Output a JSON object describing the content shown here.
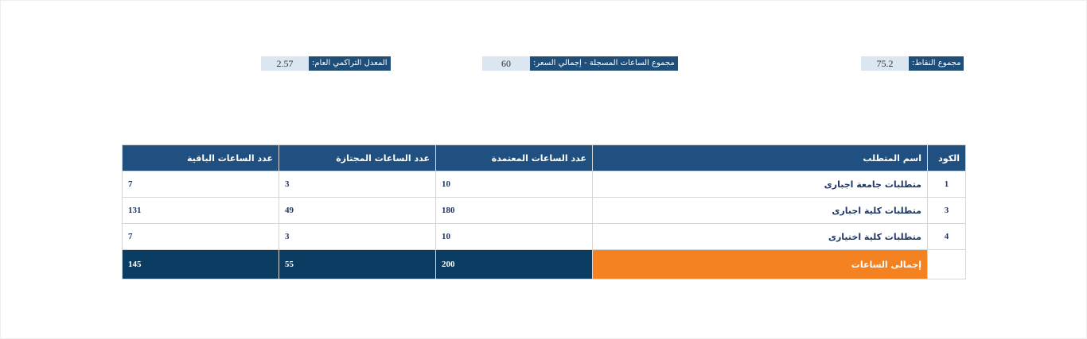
{
  "stats": {
    "points": {
      "label": "مجموع النقاط:",
      "value": "75.2"
    },
    "hours": {
      "label": "مجموع الساعات المسجلة - إجمالي السعر:",
      "value": "60"
    },
    "gpa": {
      "label": "المعدل التراكمي العام:",
      "value": "2.57"
    }
  },
  "table": {
    "headers": {
      "code": "الكود",
      "name": "اسم المتطلب",
      "credit": "عدد الساعات المعتمدة",
      "passed": "عدد الساعات المجتازة",
      "remaining": "عدد الساعات الباقية"
    },
    "rows": [
      {
        "code": "1",
        "name": "متطلبات جامعة اجبارى",
        "credit": "10",
        "passed": "3",
        "remaining": "7"
      },
      {
        "code": "3",
        "name": "متطلبات كلية اجبارى",
        "credit": "180",
        "passed": "49",
        "remaining": "131"
      },
      {
        "code": "4",
        "name": "متطلبات كلية اختيارى",
        "credit": "10",
        "passed": "3",
        "remaining": "7"
      }
    ],
    "total": {
      "code": "",
      "name": "إجمالى الساعات",
      "credit": "200",
      "passed": "55",
      "remaining": "145"
    }
  }
}
